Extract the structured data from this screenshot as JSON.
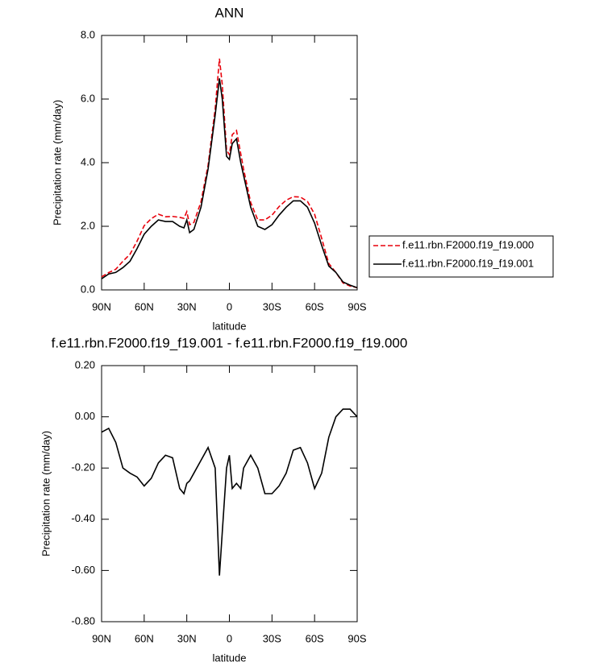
{
  "chart_data": [
    {
      "type": "line",
      "title": "ANN",
      "xlabel": "latitude",
      "ylabel": "Precipitation rate (mm/day)",
      "x": [
        90,
        85,
        80,
        75,
        70,
        65,
        60,
        55,
        50,
        45,
        40,
        35,
        32,
        30,
        28,
        25,
        20,
        15,
        10,
        7,
        5,
        2,
        0,
        -2,
        -5,
        -8,
        -10,
        -15,
        -20,
        -25,
        -30,
        -35,
        -40,
        -45,
        -50,
        -55,
        -60,
        -65,
        -70,
        -75,
        -80,
        -85,
        -90
      ],
      "series": [
        {
          "name": "f.e11.rbn.F2000.f19_f19.000",
          "color": "#e8000b",
          "line_style": "dashed",
          "values": [
            0.41,
            0.545,
            0.65,
            0.9,
            1.12,
            1.535,
            2.02,
            2.24,
            2.38,
            2.3,
            2.31,
            2.28,
            2.25,
            2.46,
            2.05,
            2.12,
            2.77,
            3.92,
            5.7,
            7.27,
            6.45,
            4.4,
            4.25,
            4.88,
            5.01,
            4.28,
            3.8,
            2.75,
            2.2,
            2.2,
            2.35,
            2.62,
            2.82,
            2.93,
            2.92,
            2.78,
            2.38,
            1.62,
            0.83,
            0.55,
            0.22,
            0.12,
            0.07
          ]
        },
        {
          "name": "f.e11.rbn.F2000.f19_f19.001",
          "color": "#000000",
          "line_style": "solid",
          "values": [
            0.35,
            0.5,
            0.55,
            0.7,
            0.9,
            1.3,
            1.75,
            2.0,
            2.2,
            2.15,
            2.15,
            2.0,
            1.95,
            2.2,
            1.8,
            1.9,
            2.6,
            3.8,
            5.5,
            6.65,
            6.0,
            4.2,
            4.1,
            4.6,
            4.75,
            4.0,
            3.6,
            2.6,
            2.0,
            1.9,
            2.05,
            2.35,
            2.6,
            2.8,
            2.8,
            2.6,
            2.1,
            1.4,
            0.75,
            0.55,
            0.25,
            0.15,
            0.07
          ]
        }
      ],
      "xlim": [
        90,
        -90
      ],
      "xticks": [
        {
          "value": 90,
          "label": "90N"
        },
        {
          "value": 60,
          "label": "60N"
        },
        {
          "value": 30,
          "label": "30N"
        },
        0,
        {
          "value": -30,
          "label": "30S"
        },
        {
          "value": -60,
          "label": "60S"
        },
        {
          "value": -90,
          "label": "90S"
        }
      ],
      "ylim": [
        0,
        8
      ],
      "yticks": [
        {
          "value": 0,
          "label": "0.0"
        },
        {
          "value": 2,
          "label": "2.0"
        },
        {
          "value": 4,
          "label": "4.0"
        },
        {
          "value": 6,
          "label": "6.0"
        },
        {
          "value": 8,
          "label": "8.0"
        }
      ],
      "legend": "right"
    },
    {
      "type": "line",
      "title": "f.e11.rbn.F2000.f19_f19.001 - f.e11.rbn.F2000.f19_f19.000",
      "xlabel": "latitude",
      "ylabel": "Precipitation rate (mm/day)",
      "x": [
        90,
        85,
        80,
        75,
        70,
        65,
        60,
        55,
        50,
        45,
        40,
        35,
        32,
        30,
        28,
        25,
        20,
        15,
        10,
        7,
        5,
        2,
        0,
        -2,
        -5,
        -8,
        -10,
        -15,
        -20,
        -25,
        -30,
        -35,
        -40,
        -45,
        -50,
        -55,
        -60,
        -65,
        -70,
        -75,
        -80,
        -85,
        -90
      ],
      "color": "#000000",
      "values": [
        -0.06,
        -0.045,
        -0.1,
        -0.2,
        -0.22,
        -0.235,
        -0.27,
        -0.24,
        -0.18,
        -0.15,
        -0.16,
        -0.28,
        -0.3,
        -0.26,
        -0.25,
        -0.22,
        -0.17,
        -0.12,
        -0.2,
        -0.62,
        -0.45,
        -0.2,
        -0.15,
        -0.28,
        -0.26,
        -0.28,
        -0.2,
        -0.15,
        -0.2,
        -0.3,
        -0.3,
        -0.27,
        -0.22,
        -0.13,
        -0.12,
        -0.18,
        -0.28,
        -0.22,
        -0.08,
        0.0,
        0.03,
        0.03,
        0.0
      ],
      "xlim": [
        90,
        -90
      ],
      "xticks": [
        {
          "value": 90,
          "label": "90N"
        },
        {
          "value": 60,
          "label": "60N"
        },
        {
          "value": 30,
          "label": "30N"
        },
        0,
        {
          "value": -30,
          "label": "30S"
        },
        {
          "value": -60,
          "label": "60S"
        },
        {
          "value": -90,
          "label": "90S"
        }
      ],
      "ylim": [
        -0.8,
        0.2
      ],
      "yticks": [
        {
          "value": -0.8,
          "label": "-0.80"
        },
        {
          "value": -0.6,
          "label": "-0.60"
        },
        {
          "value": -0.4,
          "label": "-0.40"
        },
        {
          "value": -0.2,
          "label": "-0.20"
        },
        {
          "value": 0,
          "label": "0.00"
        },
        {
          "value": 0.2,
          "label": "0.20"
        }
      ]
    }
  ]
}
